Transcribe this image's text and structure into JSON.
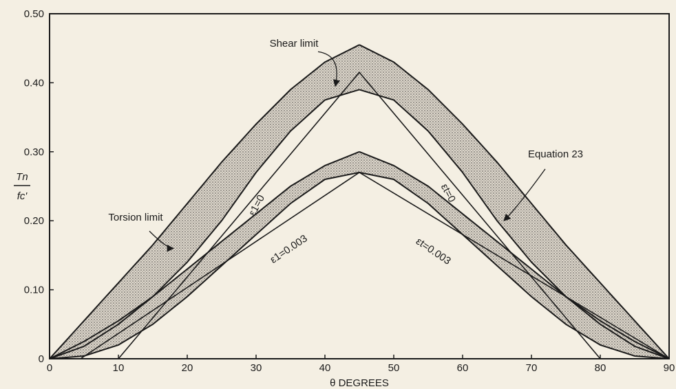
{
  "chart_data": {
    "type": "line",
    "title": "",
    "xlabel": "θ DEGREES",
    "ylabel_num": "Tn",
    "ylabel_den": "fc'",
    "xlim": [
      0,
      90
    ],
    "ylim": [
      0,
      0.5
    ],
    "x_ticks": [
      0,
      10,
      20,
      30,
      40,
      50,
      60,
      70,
      80,
      90
    ],
    "x_tick_labels": [
      "0",
      "10",
      "20",
      "30",
      "40",
      "50",
      "60",
      "70",
      "80",
      "90"
    ],
    "y_ticks": [
      0,
      0.1,
      0.2,
      0.3,
      0.4,
      0.5
    ],
    "y_tick_labels": [
      "0",
      "0.10",
      "0.20",
      "0.30",
      "0.40",
      "0.50"
    ],
    "grid": false,
    "series": [
      {
        "name": "Torsion limit upper",
        "x": [
          0,
          5,
          10,
          15,
          20,
          25,
          30,
          35,
          40,
          45
        ],
        "y": [
          0,
          0.055,
          0.11,
          0.165,
          0.225,
          0.285,
          0.34,
          0.39,
          0.43,
          0.455
        ],
        "style": "curve"
      },
      {
        "name": "Torsion limit lower",
        "x": [
          0,
          5,
          10,
          15,
          20,
          25,
          30,
          35,
          40,
          45
        ],
        "y": [
          0,
          0.018,
          0.05,
          0.09,
          0.14,
          0.2,
          0.27,
          0.33,
          0.375,
          0.39
        ],
        "style": "curve"
      },
      {
        "name": "Shear limit upper",
        "x": [
          45,
          50,
          55,
          60,
          65,
          70,
          75,
          80,
          85,
          90
        ],
        "y": [
          0.455,
          0.43,
          0.39,
          0.34,
          0.285,
          0.225,
          0.165,
          0.11,
          0.055,
          0
        ],
        "style": "curve"
      },
      {
        "name": "Shear limit lower",
        "x": [
          45,
          50,
          55,
          60,
          65,
          70,
          75,
          80,
          85,
          90
        ],
        "y": [
          0.39,
          0.375,
          0.33,
          0.27,
          0.2,
          0.14,
          0.09,
          0.05,
          0.018,
          0
        ],
        "style": "curve"
      },
      {
        "name": "Torsion limit upper (ε=0.003)",
        "x": [
          0,
          5,
          10,
          15,
          20,
          25,
          30,
          35,
          40,
          45
        ],
        "y": [
          0,
          0.025,
          0.055,
          0.09,
          0.13,
          0.17,
          0.21,
          0.25,
          0.28,
          0.3
        ],
        "style": "curve"
      },
      {
        "name": "Torsion limit lower (ε=0.003)",
        "x": [
          0,
          5,
          10,
          15,
          20,
          25,
          30,
          35,
          40,
          45
        ],
        "y": [
          0,
          0.004,
          0.02,
          0.05,
          0.09,
          0.135,
          0.18,
          0.225,
          0.26,
          0.27
        ],
        "style": "curve"
      },
      {
        "name": "Shear limit upper (ε=0.003)",
        "x": [
          45,
          50,
          55,
          60,
          65,
          70,
          75,
          80,
          85,
          90
        ],
        "y": [
          0.3,
          0.28,
          0.25,
          0.21,
          0.17,
          0.13,
          0.09,
          0.055,
          0.025,
          0
        ],
        "style": "curve"
      },
      {
        "name": "Shear limit lower (ε=0.003)",
        "x": [
          45,
          50,
          55,
          60,
          65,
          70,
          75,
          80,
          85,
          90
        ],
        "y": [
          0.27,
          0.26,
          0.225,
          0.18,
          0.135,
          0.09,
          0.05,
          0.02,
          0.004,
          0
        ],
        "style": "curve"
      },
      {
        "name": "ε1=0",
        "x": [
          10,
          45,
          80
        ],
        "y": [
          0,
          0.415,
          0
        ],
        "style": "line"
      },
      {
        "name": "ε1=0.003",
        "x": [
          4.5,
          45,
          90
        ],
        "y": [
          0,
          0.27,
          0
        ],
        "style": "line"
      }
    ],
    "annotations": [
      {
        "text": "Shear limit",
        "x": 35.5,
        "y": 0.452
      },
      {
        "text": "Torsion limit",
        "x": 12.5,
        "y": 0.2
      },
      {
        "text": "Equation 23",
        "x": 73.5,
        "y": 0.292
      },
      {
        "text": "ε1=0",
        "x": 30.5,
        "y": 0.22,
        "rotate": -62
      },
      {
        "text": "ε1=0.003",
        "x": 35,
        "y": 0.155,
        "rotate": -34
      },
      {
        "text": "εt=0",
        "x": 57.5,
        "y": 0.238,
        "rotate": 62
      },
      {
        "text": "εt=0.003",
        "x": 55.5,
        "y": 0.152,
        "rotate": 34
      }
    ]
  }
}
